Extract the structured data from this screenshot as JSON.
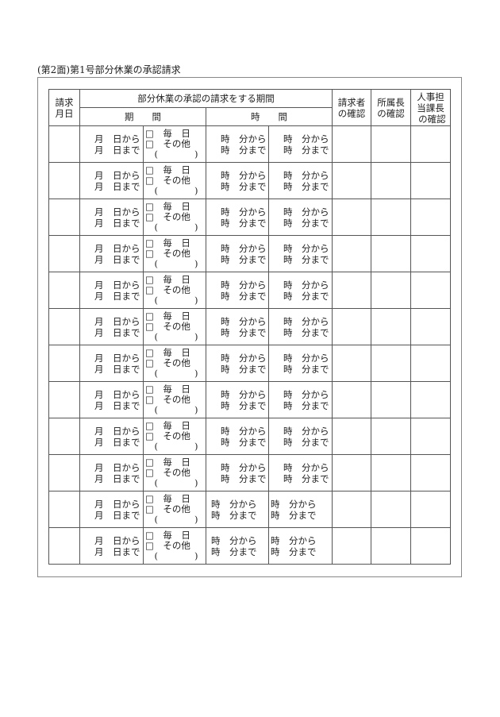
{
  "title": "(第2面)第1号部分休業の承認請求",
  "header": {
    "request_date": "請求\n月日",
    "period_group": "部分休業の承認の請求をする期間",
    "period": "期　　間",
    "time": "時　　間",
    "requester": "請求者\nの確認",
    "supervisor": "所属長\nの確認",
    "hr": "人事担\n当課長\n の確認"
  },
  "row_template": {
    "date": "月　日から\n月　日まで",
    "check": "□　毎　日\n□　その他\n　(　　　　)",
    "time1": "時　分から\n時　分まで",
    "time2": "時　分から\n時　分まで"
  },
  "row_count": 12
}
